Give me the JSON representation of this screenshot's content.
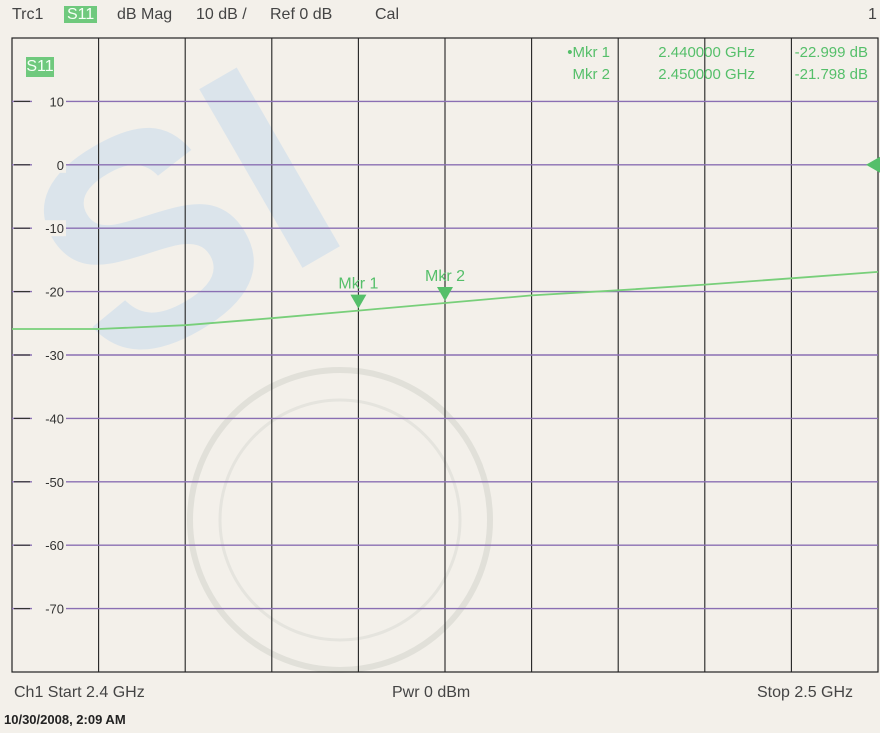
{
  "header": {
    "trace": "Trc1",
    "param": "S11",
    "format": "dB Mag",
    "scale": "10 dB /",
    "ref": "Ref 0 dB",
    "cal": "Cal",
    "channel_index": "1"
  },
  "trace_label": "S11",
  "colors": {
    "trace": "#78cf7a",
    "marker": "#55bf6a",
    "grid_major": "#222222",
    "grid_h": "#8a6fb3",
    "background": "#f3f0ea",
    "watermark": "#c9dced"
  },
  "markers": {
    "legend": [
      {
        "label": "•Mkr 1",
        "freq": "2.440000 GHz",
        "value": "-22.999 dB"
      },
      {
        "label": "Mkr 2",
        "freq": "2.450000 GHz",
        "value": "-21.798 dB"
      }
    ],
    "tags": [
      "Mkr 1",
      "Mkr 2"
    ]
  },
  "footer": {
    "left": "Ch1  Start  2.4 GHz",
    "center": "Pwr  0 dBm",
    "right": "Stop  2.5 GHz",
    "timestamp": "10/30/2008, 2:09 AM"
  },
  "chart_data": {
    "type": "line",
    "title": "",
    "xlabel": "",
    "ylabel": "",
    "xlim": [
      2.4,
      2.5
    ],
    "ylim": [
      -80,
      20
    ],
    "y_ticks": [
      10,
      0,
      -10,
      -20,
      -30,
      -40,
      -50,
      -60,
      -70
    ],
    "x_divisions": 10,
    "grid": true,
    "series": [
      {
        "values_x": [
          2.4,
          2.41,
          2.42,
          2.43,
          2.44,
          2.45,
          2.46,
          2.47,
          2.48,
          2.49,
          2.5
        ],
        "values_y": [
          -25.9,
          -25.9,
          -25.3,
          -24.2,
          -22.999,
          -21.798,
          -20.6,
          -19.8,
          -18.9,
          -17.9,
          -16.9
        ]
      }
    ],
    "markers": [
      {
        "name": "Mkr 1",
        "x": 2.44,
        "y": -22.999
      },
      {
        "name": "Mkr 2",
        "x": 2.45,
        "y": -21.798
      }
    ],
    "reference_level": 0
  }
}
